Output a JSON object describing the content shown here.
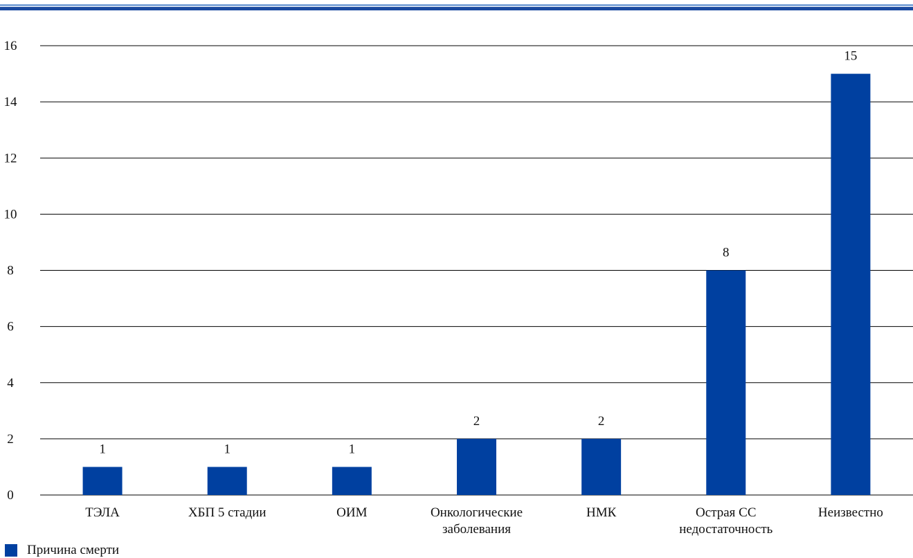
{
  "chart_data": {
    "type": "bar",
    "categories": [
      [
        "ТЭЛА"
      ],
      [
        "ХБП 5 стадии"
      ],
      [
        "ОИМ"
      ],
      [
        "Онкологические",
        "заболевания"
      ],
      [
        "НМК"
      ],
      [
        "Острая СС",
        "недостаточность"
      ],
      [
        "Неизвестно"
      ]
    ],
    "series": [
      {
        "name": "Причина смерти",
        "values": [
          1,
          1,
          1,
          2,
          2,
          8,
          15
        ],
        "color": "#0040a0"
      }
    ],
    "yticks": [
      0,
      2,
      4,
      6,
      8,
      10,
      12,
      14,
      16
    ],
    "ylim": [
      0,
      16
    ],
    "grid": true,
    "data_labels": true,
    "legend_position": "bottom-left"
  },
  "colors": {
    "bar": "#0040a0",
    "rule_light": "#7fa6d9",
    "rule_dark": "#1a4aa0",
    "text": "#111111"
  }
}
